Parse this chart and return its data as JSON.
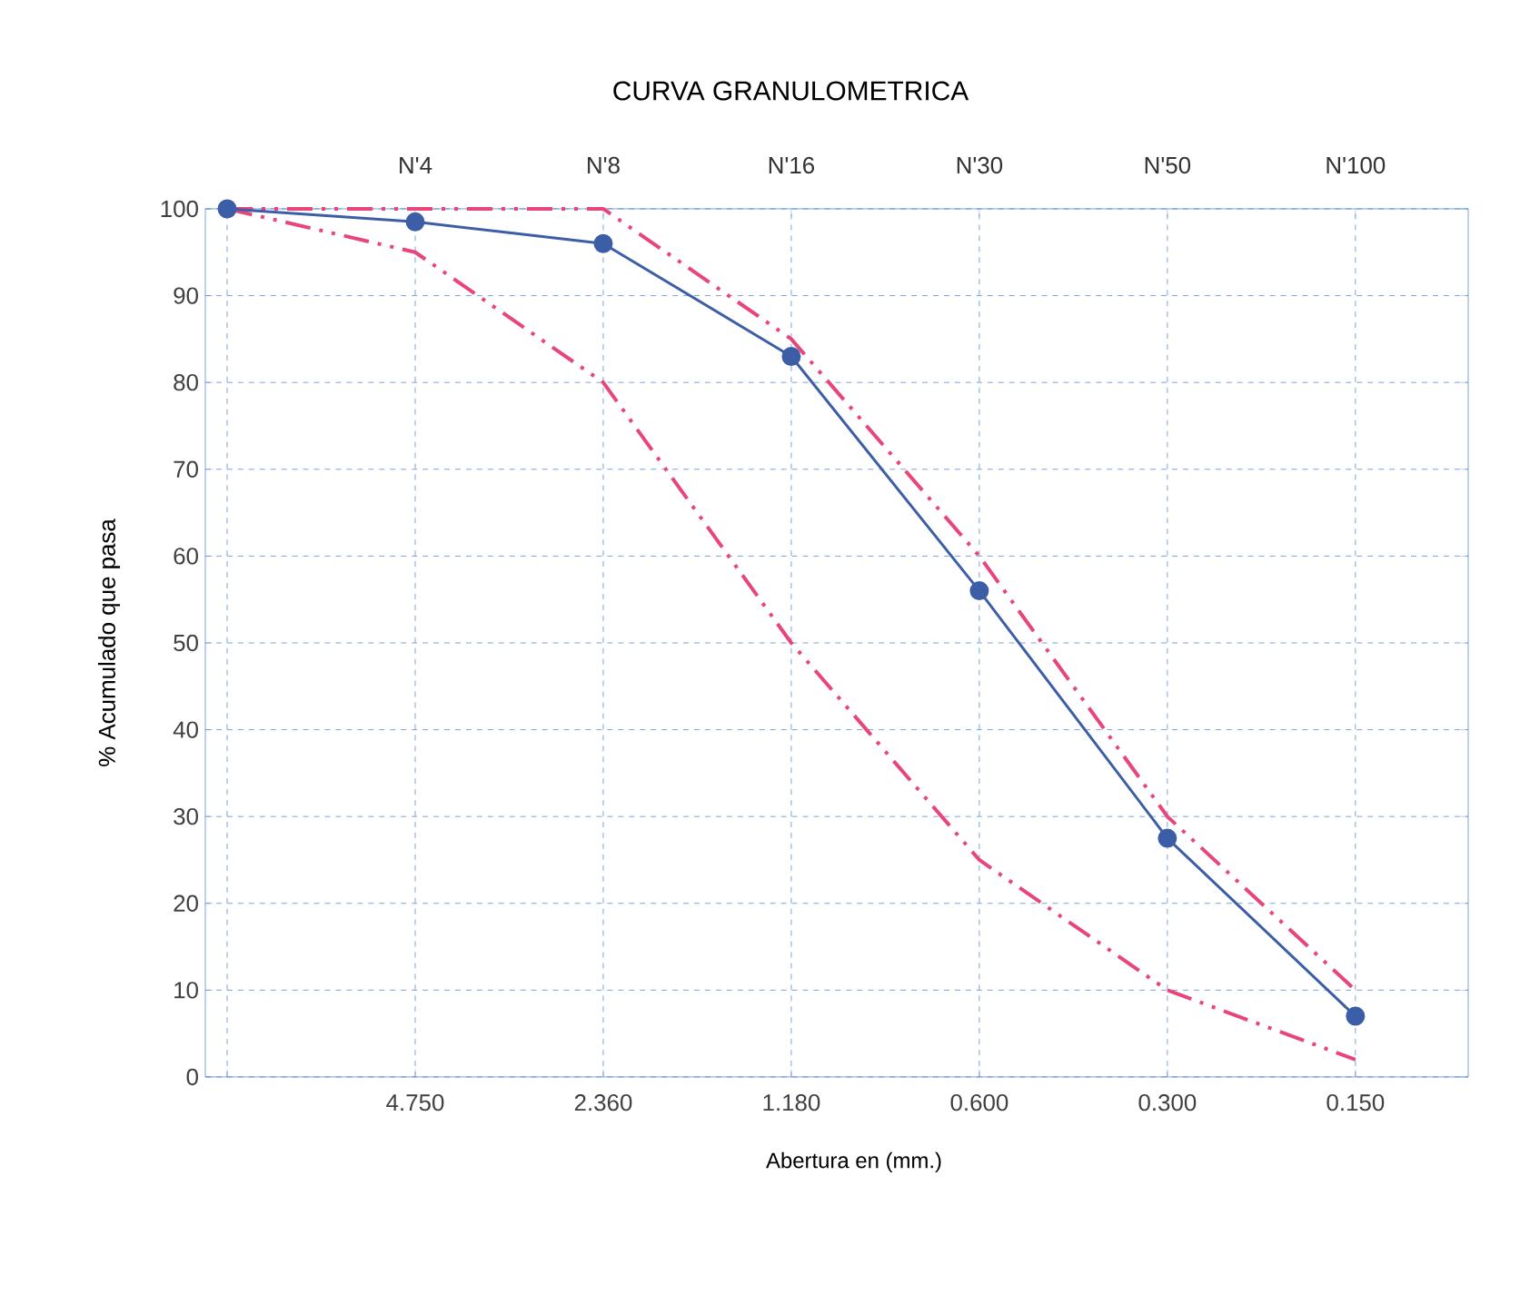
{
  "chart_data": {
    "type": "line",
    "title": "CURVA GRANULOMETRICA",
    "xlabel": "Abertura en (mm.)",
    "ylabel": "% Acumulado que pasa",
    "categories": [
      null,
      "4.750",
      "2.360",
      "1.180",
      "0.600",
      "0.300",
      "0.150"
    ],
    "series": [
      {
        "color": "#3b5ea6",
        "values": [
          100,
          98.5,
          96,
          83,
          56,
          27.5,
          7
        ],
        "marker": "circle",
        "line_style": "solid"
      },
      {
        "color": "#e8457a",
        "values": [
          100,
          100,
          100,
          85,
          60,
          30,
          10
        ],
        "marker": "none",
        "line_style": "dashed"
      },
      {
        "color": "#e8457a",
        "values": [
          100,
          95,
          80,
          50,
          25,
          10,
          2
        ],
        "marker": "none",
        "line_style": "dashed"
      }
    ],
    "ylim": [
      0,
      100
    ],
    "yticks": [
      0,
      10,
      20,
      30,
      40,
      50,
      60,
      70,
      80,
      90,
      100
    ],
    "grid": true,
    "annotations": [
      "N'4",
      "N'8",
      "N'16",
      "N'30",
      "N'50",
      "N'100"
    ]
  }
}
